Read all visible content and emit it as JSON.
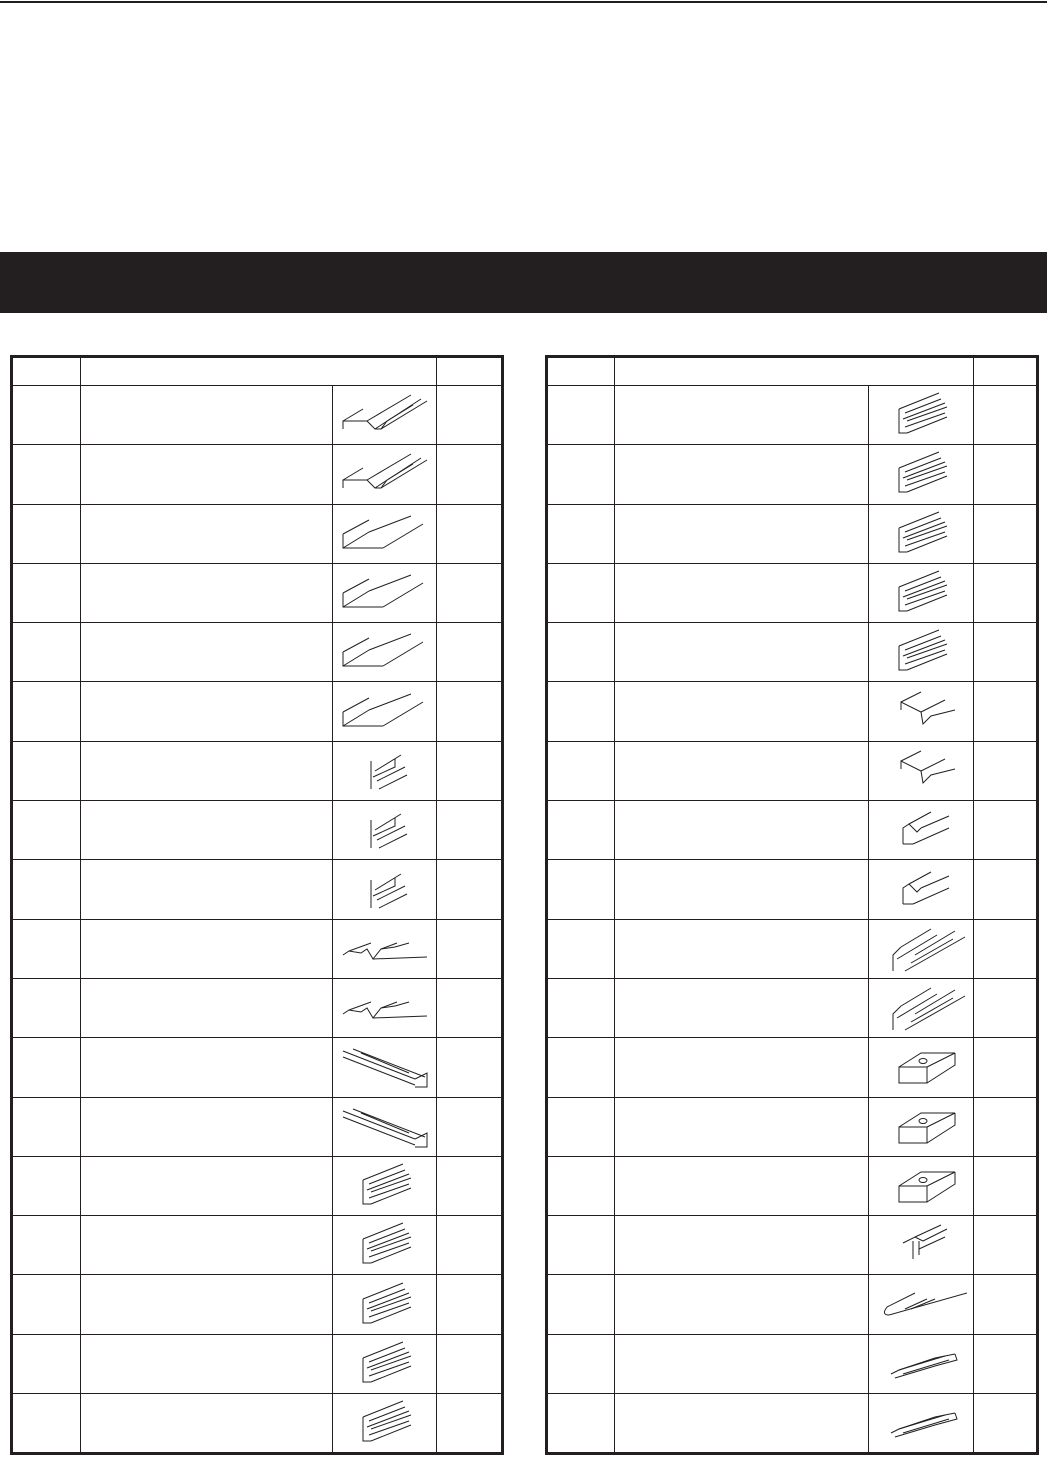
{
  "header_band": {
    "color": "#231f20"
  },
  "tables": [
    {
      "id": "left",
      "rows": [
        {
          "icon": "notched-z-profile-icon"
        },
        {
          "icon": "notched-z-profile-icon"
        },
        {
          "icon": "z-profile-icon"
        },
        {
          "icon": "z-profile-icon"
        },
        {
          "icon": "z-profile-icon"
        },
        {
          "icon": "z-profile-icon"
        },
        {
          "icon": "t-profile-icon"
        },
        {
          "icon": "t-profile-icon"
        },
        {
          "icon": "t-profile-icon"
        },
        {
          "icon": "v-groove-profile-icon"
        },
        {
          "icon": "v-groove-profile-icon"
        },
        {
          "icon": "box-channel-icon"
        },
        {
          "icon": "box-channel-icon"
        },
        {
          "icon": "track-rail-icon"
        },
        {
          "icon": "track-rail-icon"
        },
        {
          "icon": "track-rail-icon"
        },
        {
          "icon": "track-rail-icon"
        },
        {
          "icon": "track-rail-icon"
        }
      ]
    },
    {
      "id": "right",
      "rows": [
        {
          "icon": "track-rail-icon"
        },
        {
          "icon": "track-rail-icon"
        },
        {
          "icon": "track-rail-icon"
        },
        {
          "icon": "track-rail-icon"
        },
        {
          "icon": "track-rail-icon"
        },
        {
          "icon": "step-profile-icon"
        },
        {
          "icon": "step-profile-icon"
        },
        {
          "icon": "hook-profile-icon"
        },
        {
          "icon": "hook-profile-icon"
        },
        {
          "icon": "double-channel-icon"
        },
        {
          "icon": "double-channel-icon"
        },
        {
          "icon": "block-with-hole-icon"
        },
        {
          "icon": "block-with-hole-icon"
        },
        {
          "icon": "block-with-hole-icon"
        },
        {
          "icon": "t-rail-icon"
        },
        {
          "icon": "rounded-strip-icon"
        },
        {
          "icon": "flat-rail-icon"
        },
        {
          "icon": "flat-rail-icon"
        }
      ]
    }
  ]
}
